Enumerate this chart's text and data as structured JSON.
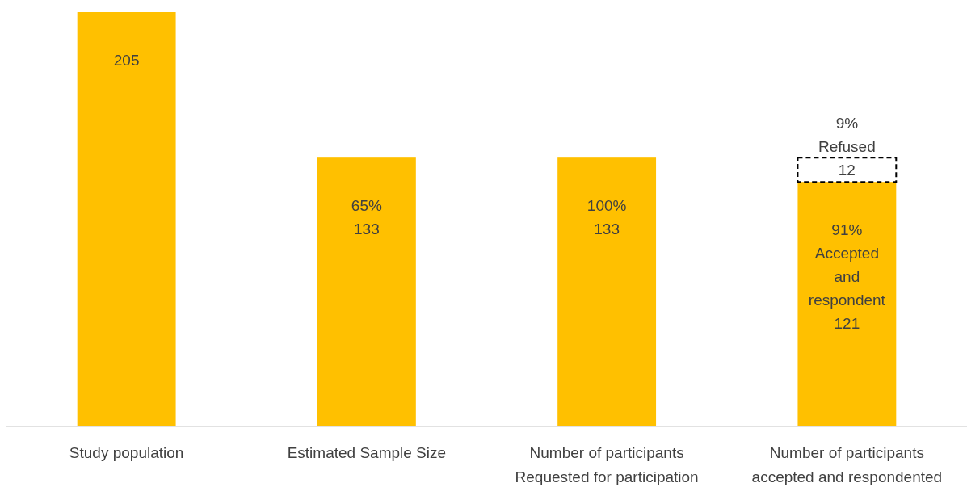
{
  "chart_data": {
    "type": "bar",
    "stacked": true,
    "categories": [
      "Study population",
      "Estimated Sample Size",
      "Number of participants\nRequested for participation",
      "Number of participants\naccepted and respondented"
    ],
    "series": [
      {
        "color": "#ffc000",
        "values": [
          205,
          133,
          133,
          121
        ],
        "value_labels": [
          "205",
          "65%\n133",
          "100%\n133",
          "91%\nAccepted\nand\nrespondent\n121"
        ]
      },
      {
        "color": "#000000",
        "line_style": "dashed",
        "values": [
          null,
          null,
          null,
          12
        ],
        "value_labels": [
          null,
          null,
          null,
          "9%\nRefused\n12"
        ]
      }
    ]
  }
}
